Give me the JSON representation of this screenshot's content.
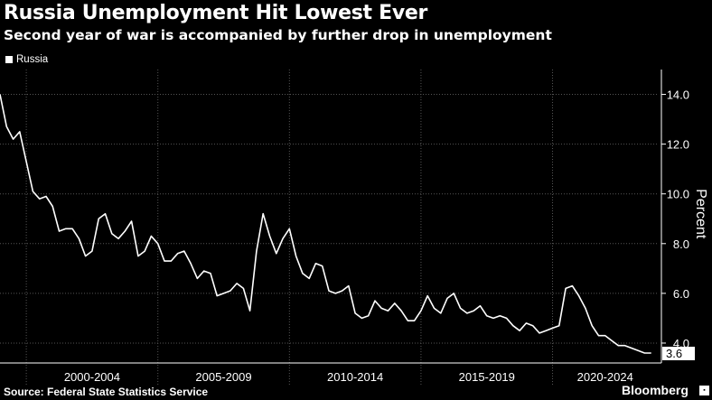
{
  "title": "Russia Unemployment Hit Lowest Ever",
  "subtitle": "Second year of war is accompanied by further drop in unemployment",
  "source": "Source: Federal State Statistics Service",
  "brand": "Bloomberg",
  "brand_icon": "bloomberg-logo-icon",
  "colors": {
    "background": "#000000",
    "line": "#ffffff",
    "grid": "#555555"
  },
  "chart_data": {
    "type": "line",
    "title": "Russia Unemployment Hit Lowest Ever",
    "subtitle": "Second year of war is accompanied by further drop in unemployment",
    "ylabel": "Percent",
    "xlabel": "",
    "ylim": [
      3.2,
      15.0
    ],
    "xlim": [
      1999.0,
      2023.75
    ],
    "y_ticks": [
      4.0,
      6.0,
      8.0,
      10.0,
      12.0,
      14.0
    ],
    "y_tick_labels": [
      "4.0",
      "6.0",
      "8.0",
      "10.0",
      "12.0",
      "14.0"
    ],
    "x_tick_labels": [
      "2000-2004",
      "2005-2009",
      "2010-2014",
      "2015-2019",
      "2020-2024"
    ],
    "x_tick_ranges": [
      [
        2000,
        2005
      ],
      [
        2005,
        2010
      ],
      [
        2010,
        2015
      ],
      [
        2015,
        2020
      ],
      [
        2020,
        2025
      ]
    ],
    "x_boundaries": [
      2000,
      2005,
      2010,
      2015,
      2020
    ],
    "grid": true,
    "legend_position": "top-left",
    "last_value_label": "3.6",
    "series": [
      {
        "name": "Russia",
        "color": "#ffffff",
        "x": [
          1999.0,
          1999.25,
          1999.5,
          1999.75,
          2000.0,
          2000.25,
          2000.5,
          2000.75,
          2001.0,
          2001.25,
          2001.5,
          2001.75,
          2002.0,
          2002.25,
          2002.5,
          2002.75,
          2003.0,
          2003.25,
          2003.5,
          2003.75,
          2004.0,
          2004.25,
          2004.5,
          2004.75,
          2005.0,
          2005.25,
          2005.5,
          2005.75,
          2006.0,
          2006.25,
          2006.5,
          2006.75,
          2007.0,
          2007.25,
          2007.5,
          2007.75,
          2008.0,
          2008.25,
          2008.5,
          2008.75,
          2009.0,
          2009.25,
          2009.5,
          2009.75,
          2010.0,
          2010.25,
          2010.5,
          2010.75,
          2011.0,
          2011.25,
          2011.5,
          2011.75,
          2012.0,
          2012.25,
          2012.5,
          2012.75,
          2013.0,
          2013.25,
          2013.5,
          2013.75,
          2014.0,
          2014.25,
          2014.5,
          2014.75,
          2015.0,
          2015.25,
          2015.5,
          2015.75,
          2016.0,
          2016.25,
          2016.5,
          2016.75,
          2017.0,
          2017.25,
          2017.5,
          2017.75,
          2018.0,
          2018.25,
          2018.5,
          2018.75,
          2019.0,
          2019.25,
          2019.5,
          2019.75,
          2020.0,
          2020.25,
          2020.5,
          2020.75,
          2021.0,
          2021.25,
          2021.5,
          2021.75,
          2022.0,
          2022.25,
          2022.5,
          2022.75,
          2023.0,
          2023.25,
          2023.5,
          2023.75
        ],
        "values": [
          14.0,
          12.7,
          12.2,
          12.5,
          11.3,
          10.1,
          9.8,
          9.9,
          9.5,
          8.5,
          8.6,
          8.6,
          8.2,
          7.5,
          7.7,
          9.0,
          9.2,
          8.4,
          8.2,
          8.5,
          8.9,
          7.5,
          7.7,
          8.3,
          8.0,
          7.3,
          7.3,
          7.6,
          7.7,
          7.2,
          6.6,
          6.9,
          6.8,
          5.9,
          6.0,
          6.1,
          6.4,
          6.2,
          5.3,
          7.7,
          9.2,
          8.3,
          7.6,
          8.2,
          8.6,
          7.5,
          6.8,
          6.6,
          7.2,
          7.1,
          6.1,
          6.0,
          6.1,
          6.3,
          5.2,
          5.0,
          5.1,
          5.7,
          5.4,
          5.3,
          5.6,
          5.3,
          4.9,
          4.9,
          5.3,
          5.9,
          5.4,
          5.2,
          5.8,
          6.0,
          5.4,
          5.2,
          5.3,
          5.5,
          5.1,
          5.0,
          5.1,
          5.0,
          4.7,
          4.5,
          4.8,
          4.7,
          4.4,
          4.5,
          4.6,
          4.7,
          6.2,
          6.3,
          5.9,
          5.4,
          4.7,
          4.3,
          4.3,
          4.1,
          3.9,
          3.9,
          3.8,
          3.7,
          3.6,
          3.6
        ]
      }
    ]
  }
}
